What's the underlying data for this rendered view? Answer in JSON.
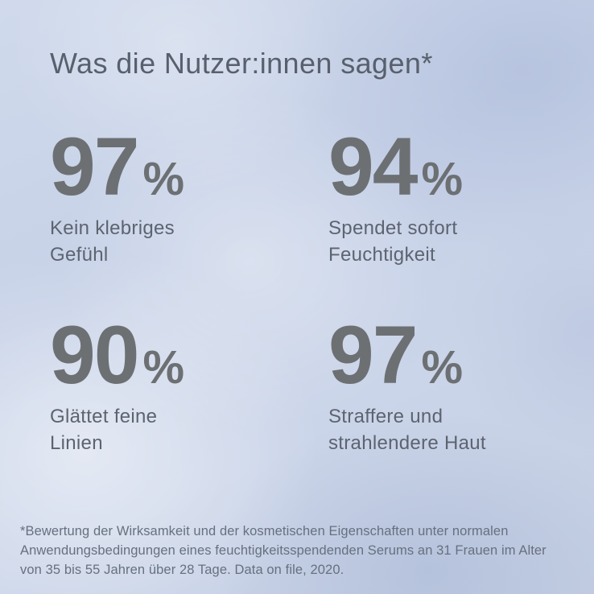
{
  "title": "Was die Nutzer:innen sagen*",
  "stats": [
    {
      "value": "97",
      "unit": "%",
      "label": "Kein klebriges\nGefühl"
    },
    {
      "value": "94",
      "unit": "%",
      "label": "Spendet sofort\nFeuchtigkeit"
    },
    {
      "value": "90",
      "unit": "%",
      "label": "Glättet feine\nLinien"
    },
    {
      "value": "97",
      "unit": "%",
      "label": "Straffere und\nstrahlendere Haut"
    }
  ],
  "footnote": "*Bewertung der Wirksamkeit und der kosmetischen Eigenschaften unter normalen\nAnwendungsbedingungen eines feuchtigkeitsspendenden Serums an 31 Frauen im Alter\nvon 35 bis 55 Jahren über 28 Tage. Data on file, 2020.",
  "colors": {
    "background_base": "#c6d1e7",
    "title_text": "#57606c",
    "stat_number": "#6d7073",
    "stat_label": "#5c6470",
    "footnote_text": "#66707f"
  }
}
